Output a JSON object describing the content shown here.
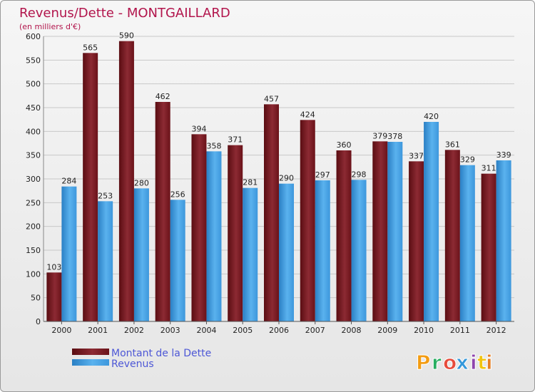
{
  "chart_data": {
    "type": "bar",
    "title": "Revenus/Dette - MONTGAILLARD",
    "subtitle": "(en milliers d'€)",
    "categories": [
      "2000",
      "2001",
      "2002",
      "2003",
      "2004",
      "2005",
      "2006",
      "2007",
      "2008",
      "2009",
      "2010",
      "2011",
      "2012"
    ],
    "series": [
      {
        "name": "Montant de la Dette",
        "color": "#7a1e26",
        "values": [
          103,
          565,
          590,
          462,
          394,
          371,
          457,
          424,
          360,
          379,
          337,
          361,
          311
        ]
      },
      {
        "name": "Revenus",
        "color": "#3d97dc",
        "values": [
          284,
          253,
          280,
          256,
          358,
          281,
          290,
          297,
          298,
          378,
          420,
          329,
          339
        ]
      }
    ],
    "ylim": [
      0,
      600
    ],
    "yticks": [
      0,
      50,
      100,
      150,
      200,
      250,
      300,
      350,
      400,
      450,
      500,
      550,
      600
    ],
    "grid": true,
    "legend_position": "bottom-left"
  },
  "logo": {
    "text": "Proxiti",
    "letter_colors": [
      "#f39c12",
      "#27ae60",
      "#e74c3c",
      "#3498db",
      "#8e44ad",
      "#f1c40f",
      "#e67e22"
    ]
  }
}
